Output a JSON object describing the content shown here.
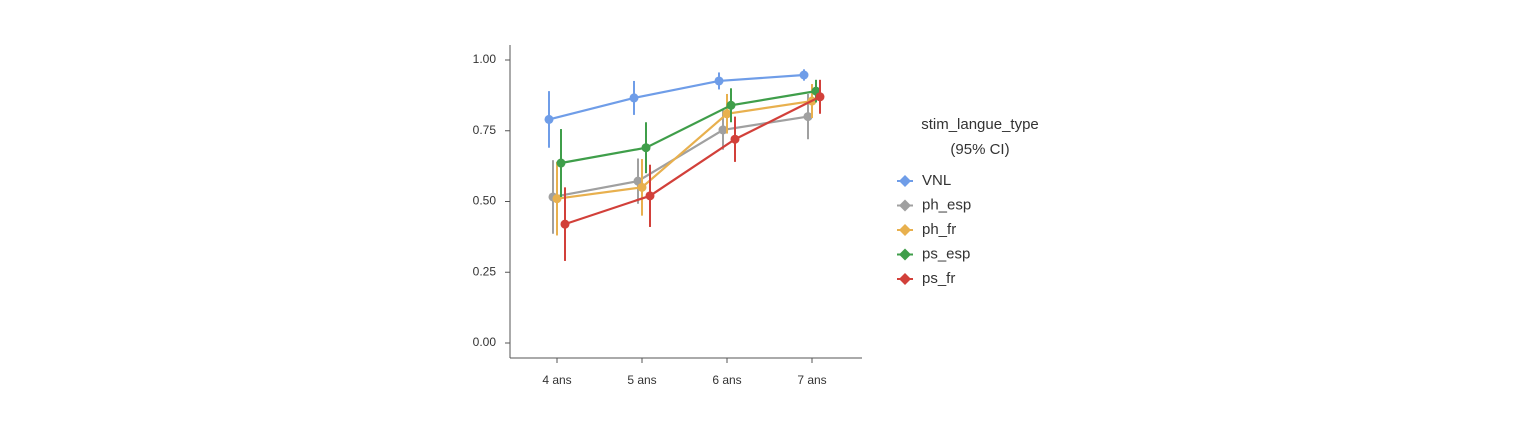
{
  "chart_data": {
    "type": "line",
    "categories": [
      "4 ans",
      "5 ans",
      "6 ans",
      "7 ans"
    ],
    "ylim": [
      0,
      1
    ],
    "yticks": [
      {
        "value": 0,
        "label": "0.00"
      },
      {
        "value": 0.25,
        "label": "0.25"
      },
      {
        "value": 0.5,
        "label": "0.50"
      },
      {
        "value": 0.75,
        "label": "0.75"
      },
      {
        "value": 1,
        "label": "1.00"
      }
    ],
    "legend_title": [
      "stim_langue_type",
      "(95% CI)"
    ],
    "series": [
      {
        "name": "VNL",
        "color": "#6f9de8",
        "values": [
          0.79,
          0.866,
          0.926,
          0.947
        ],
        "errors": [
          0.1,
          0.06,
          0.03,
          0.02
        ]
      },
      {
        "name": "ph_esp",
        "color": "#a0a0a0",
        "values": [
          0.516,
          0.572,
          0.753,
          0.8
        ],
        "errors": [
          0.13,
          0.08,
          0.07,
          0.08
        ]
      },
      {
        "name": "ph_fr",
        "color": "#e8b04e",
        "values": [
          0.51,
          0.55,
          0.81,
          0.855
        ],
        "errors": [
          0.13,
          0.1,
          0.07,
          0.06
        ]
      },
      {
        "name": "ps_esp",
        "color": "#3f9e4a",
        "values": [
          0.636,
          0.69,
          0.84,
          0.89
        ],
        "errors": [
          0.12,
          0.09,
          0.06,
          0.04
        ]
      },
      {
        "name": "ps_fr",
        "color": "#d2403a",
        "values": [
          0.42,
          0.52,
          0.72,
          0.87
        ],
        "errors": [
          0.13,
          0.11,
          0.08,
          0.06
        ]
      }
    ]
  }
}
